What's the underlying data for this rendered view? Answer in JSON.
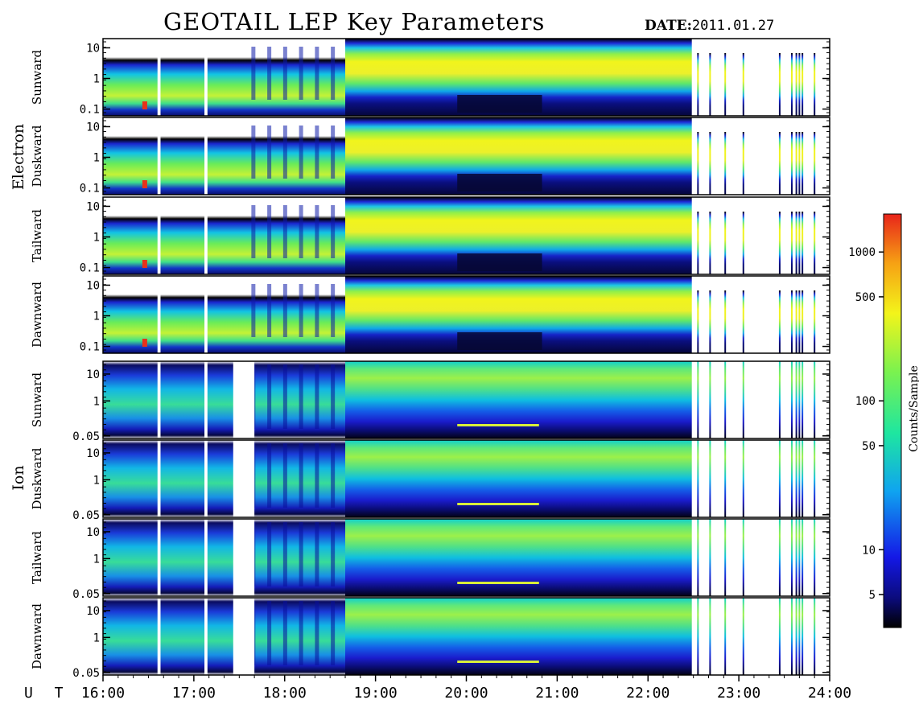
{
  "header": {
    "title": "GEOTAIL LEP Key Parameters",
    "date_label": "DATE:",
    "date_value": "2011.01.27"
  },
  "groups": [
    "Electron",
    "Ion"
  ],
  "colorbar": {
    "label": "Counts/Sample",
    "scale": "log",
    "range": [
      3,
      1800
    ],
    "ticks": [
      "5",
      "10",
      "50",
      "100",
      "500",
      "1000"
    ]
  },
  "chart_data": {
    "type": "heatmap",
    "x_unit": "U T",
    "x_range": [
      "16:00",
      "24:00"
    ],
    "x_ticks": [
      "16:00",
      "17:00",
      "18:00",
      "19:00",
      "20:00",
      "21:00",
      "22:00",
      "23:00",
      "24:00"
    ],
    "y_scale": "log",
    "panels": [
      {
        "group": "Electron",
        "direction": "Sunward",
        "y_ticks": [
          "10",
          "1",
          "0.1"
        ],
        "y_range": [
          0.06,
          20
        ]
      },
      {
        "group": "Electron",
        "direction": "Duskward",
        "y_ticks": [
          "10",
          "1",
          "0.1"
        ],
        "y_range": [
          0.06,
          20
        ]
      },
      {
        "group": "Electron",
        "direction": "Tailward",
        "y_ticks": [
          "10",
          "1",
          "0.1"
        ],
        "y_range": [
          0.06,
          20
        ]
      },
      {
        "group": "Electron",
        "direction": "Dawnward",
        "y_ticks": [
          "10",
          "1",
          "0.1"
        ],
        "y_range": [
          0.06,
          20
        ]
      },
      {
        "group": "Ion",
        "direction": "Sunward",
        "y_ticks": [
          "10",
          "1",
          "0.05"
        ],
        "y_range": [
          0.04,
          30
        ]
      },
      {
        "group": "Ion",
        "direction": "Duskward",
        "y_ticks": [
          "10",
          "1",
          "0.05"
        ],
        "y_range": [
          0.04,
          30
        ]
      },
      {
        "group": "Ion",
        "direction": "Tailward",
        "y_ticks": [
          "10",
          "1",
          "0.05"
        ],
        "y_range": [
          0.04,
          30
        ]
      },
      {
        "group": "Ion",
        "direction": "Dawnward",
        "y_ticks": [
          "10",
          "1",
          "0.05"
        ],
        "y_range": [
          0.04,
          30
        ]
      }
    ],
    "data_gaps": [
      {
        "start": "16:36",
        "end": "16:38"
      },
      {
        "start": "17:07",
        "end": "17:09"
      },
      {
        "start": "22:29",
        "end": "22:33"
      },
      {
        "start": "22:39",
        "end": "22:41"
      },
      {
        "start": "22:43",
        "end": "22:51"
      },
      {
        "start": "22:53",
        "end": "23:03"
      },
      {
        "start": "23:05",
        "end": "23:27"
      },
      {
        "start": "23:29",
        "end": "23:35"
      },
      {
        "start": "23:36",
        "end": "23:38"
      },
      {
        "start": "23:39",
        "end": "23:40"
      },
      {
        "start": "23:41",
        "end": "23:42"
      },
      {
        "start": "23:44",
        "end": "23:50"
      },
      {
        "start": "23:51",
        "end": "24:00"
      }
    ]
  }
}
